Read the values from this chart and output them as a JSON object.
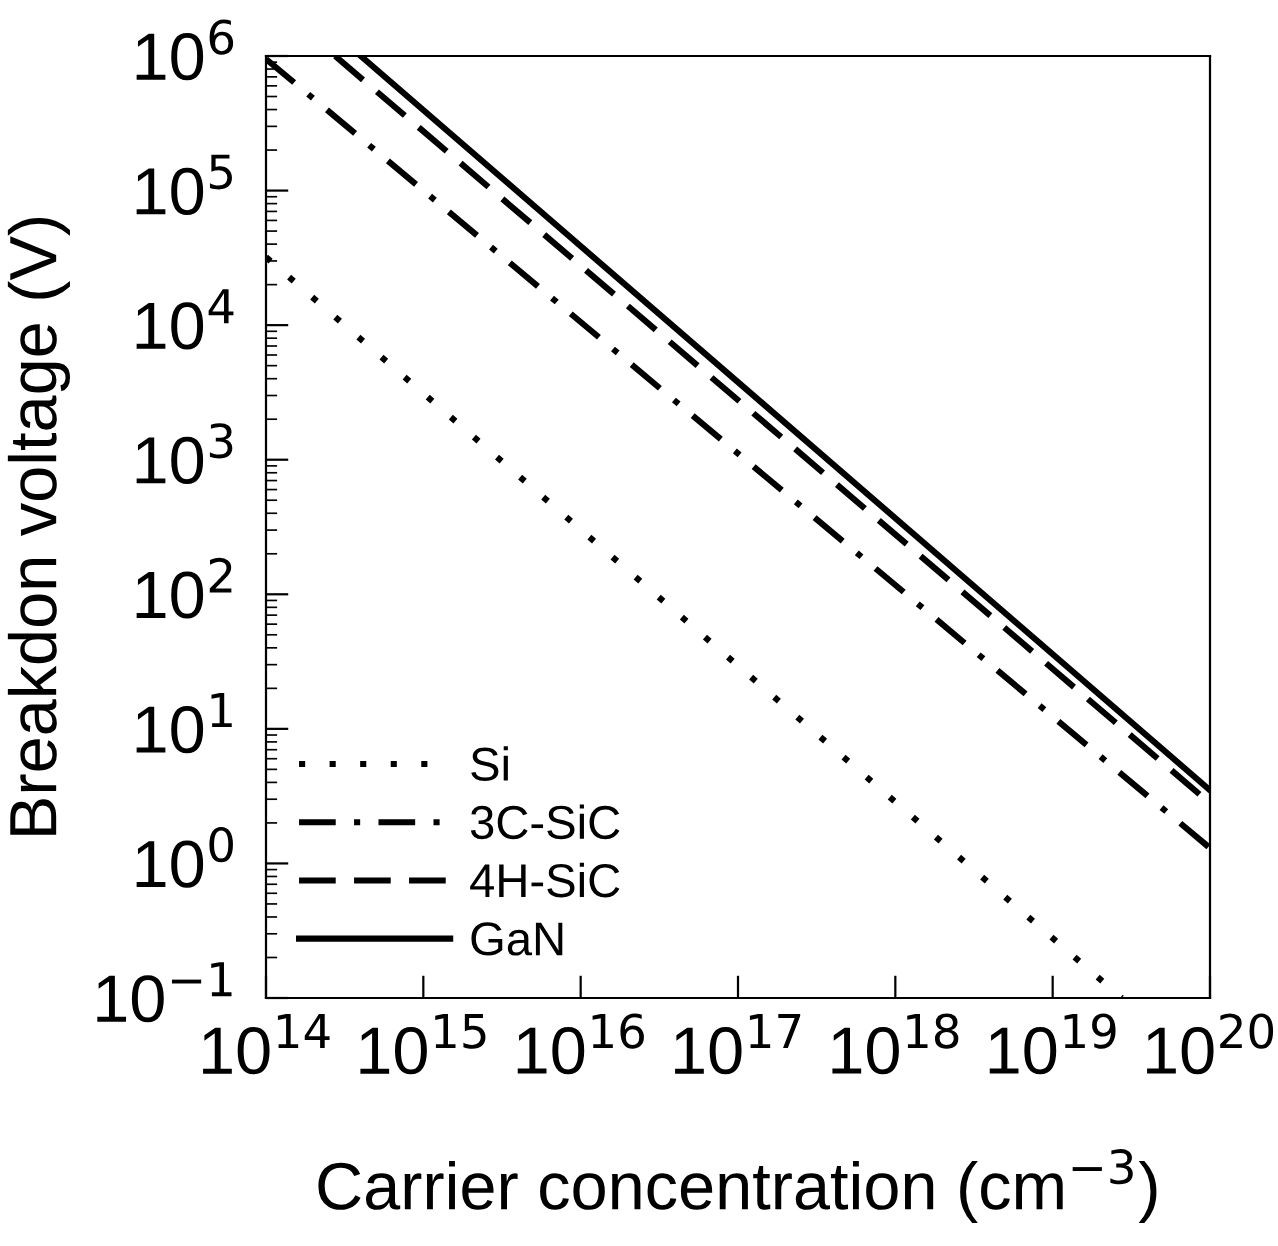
{
  "chart_data": {
    "type": "line",
    "xlabel": "Carrier concentration (cm$^{−3}$)",
    "ylabel": "Breakdon voltage (V)",
    "log": "xy",
    "xlim": [
      100000000000000.0,
      1e+20
    ],
    "ylim": [
      0.1,
      1000000.0
    ],
    "xticks": [
      {
        "value": 100000000000000.0,
        "label": "10$^{14}$"
      },
      {
        "value": 1000000000000000.0,
        "label": "10$^{15}$"
      },
      {
        "value": 1e+16,
        "label": "10$^{16}$"
      },
      {
        "value": 1e+17,
        "label": "10$^{17}$"
      },
      {
        "value": 1e+18,
        "label": "10$^{18}$"
      },
      {
        "value": 1e+19,
        "label": "10$^{19}$"
      },
      {
        "value": 1e+20,
        "label": "10$^{20}$"
      }
    ],
    "yticks": [
      {
        "value": 0.1,
        "label": "10$^{−1}$"
      },
      {
        "value": 1,
        "label": "10$^{0}$"
      },
      {
        "value": 10,
        "label": "10$^{1}$"
      },
      {
        "value": 100,
        "label": "10$^{2}$"
      },
      {
        "value": 1000,
        "label": "10$^{3}$"
      },
      {
        "value": 10000,
        "label": "10$^{4}$"
      },
      {
        "value": 100000,
        "label": "10$^{5}$"
      },
      {
        "value": 1000000,
        "label": "10$^{6}$"
      }
    ],
    "legend": "bottom left",
    "grid": false,
    "series": [
      {
        "name": "Si",
        "color": "#000000",
        "line_style": "dotted",
        "x": [
          100000000000000.0,
          2.75e+19
        ],
        "values": [
          32000,
          0.1
        ]
      },
      {
        "name": "3C-SiC",
        "color": "#000000",
        "line_style": "dashdot",
        "x": [
          100000000000000.0,
          1e+20
        ],
        "values": [
          950000,
          1.3
        ]
      },
      {
        "name": "4H-SiC",
        "color": "#000000",
        "line_style": "dashed",
        "x": [
          275000000000000.0,
          1e+20
        ],
        "values": [
          1000000,
          2.8
        ]
      },
      {
        "name": "GaN",
        "color": "#000000",
        "line_style": "solid",
        "x": [
          400000000000000.0,
          1e+20
        ],
        "values": [
          1000000,
          3.5
        ]
      }
    ]
  }
}
